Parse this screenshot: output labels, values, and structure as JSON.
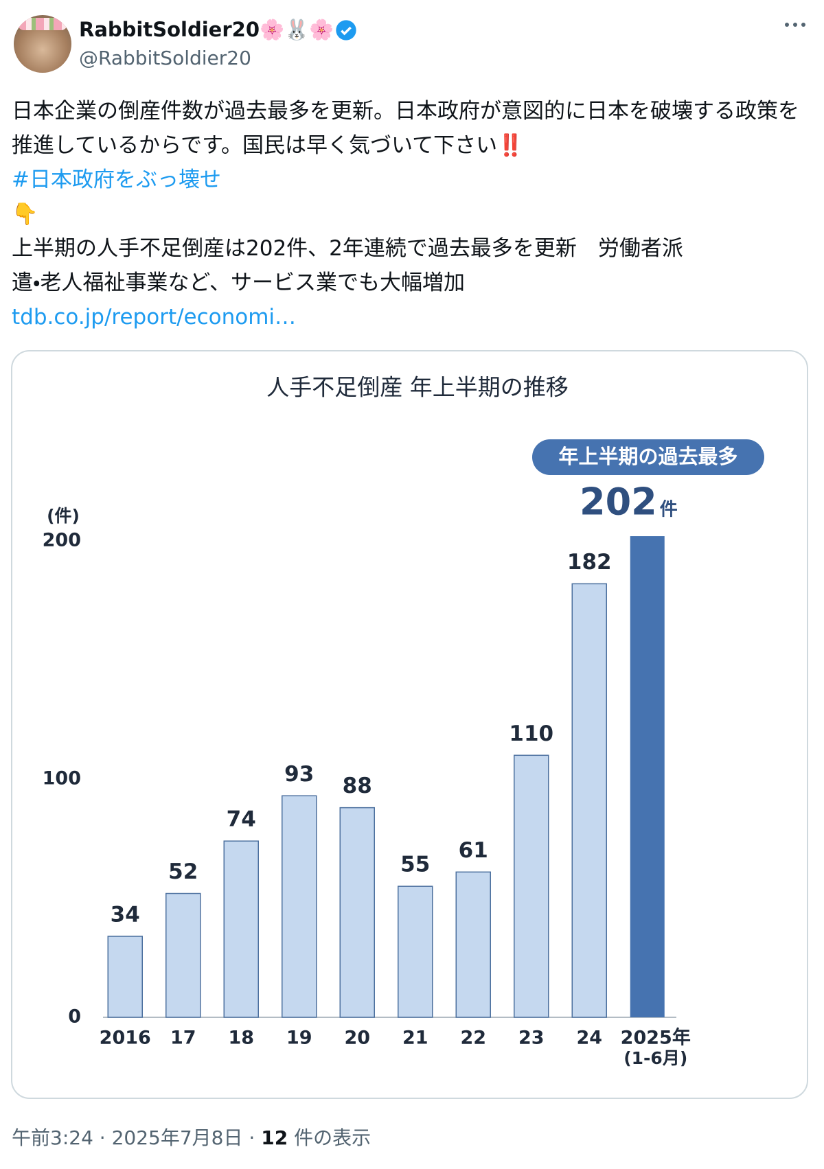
{
  "tweet": {
    "display_name": "RabbitSoldier20🌸🐰🌸",
    "handle": "@RabbitSoldier20",
    "text": "日本企業の倒産件数が過去最多を更新。日本政府が意図的に日本を破壊する政策を推進しているからです。国民は早く気づいて下さい‼️",
    "hashtag": "#日本政府をぶっ壊せ",
    "pointer": "👇",
    "quote": "上半期の人手不足倒産は202件、2年連続で過去最多を更新　労働者派遣・老人福祉事業など、サービス業でも大幅増加",
    "link": "tdb.co.jp/report/economi…",
    "time": "午前3:24",
    "separator": "·",
    "date": "2025年7月8日",
    "views": "12",
    "views_label": "件の表示"
  },
  "chart_data": {
    "type": "bar",
    "title": "人手不足倒産 年上半期の推移",
    "y_unit": "(件)",
    "badge": "年上半期の過去最多",
    "highlight_unit": "件",
    "categories": [
      "2016",
      "17",
      "18",
      "19",
      "20",
      "21",
      "22",
      "23",
      "24",
      "2025年"
    ],
    "category_note": "(1-6月)",
    "values": [
      34,
      52,
      74,
      93,
      88,
      55,
      61,
      110,
      182,
      202
    ],
    "colors": [
      "#c5d8ef",
      "#c5d8ef",
      "#c5d8ef",
      "#c5d8ef",
      "#c5d8ef",
      "#c5d8ef",
      "#c5d8ef",
      "#c5d8ef",
      "#c5d8ef",
      "#4673b0"
    ],
    "ylim": [
      0,
      200
    ],
    "yticks": [
      0,
      100,
      200
    ],
    "grid": false
  }
}
